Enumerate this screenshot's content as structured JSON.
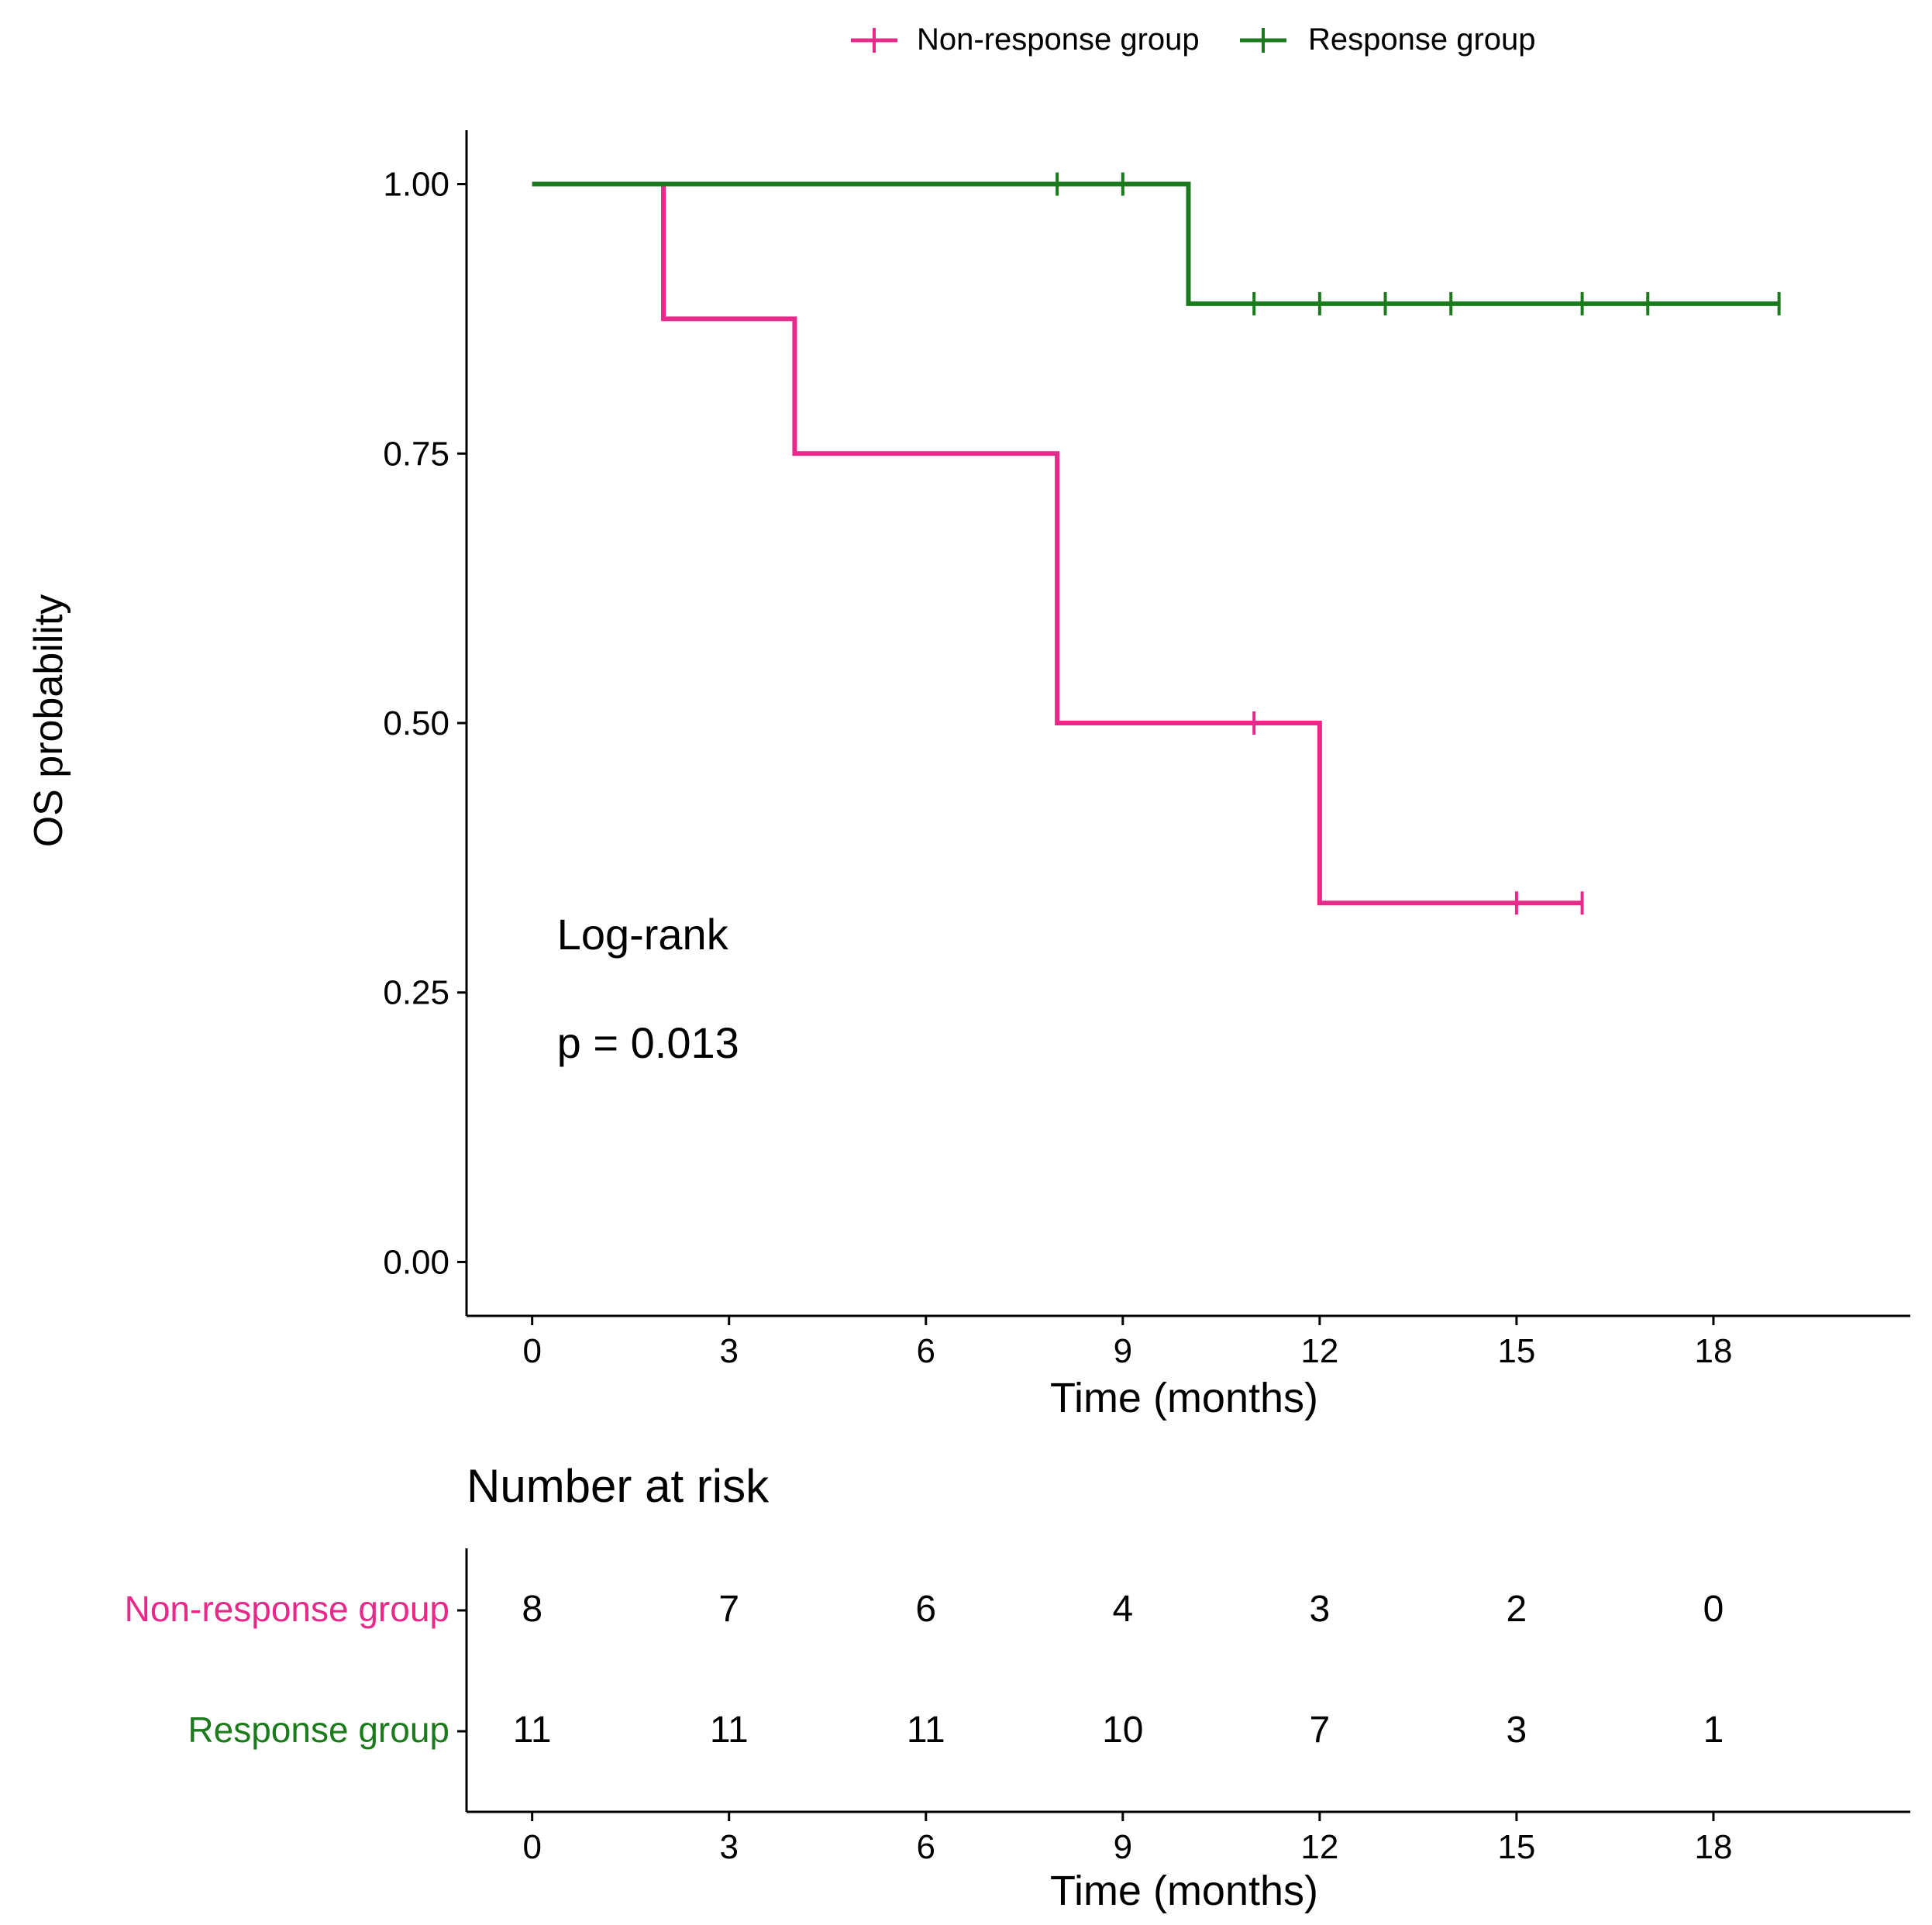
{
  "chart_data": [
    {
      "type": "line",
      "subtype": "kaplan-meier",
      "title": "",
      "xlabel": "Time (months)",
      "ylabel": "OS probability",
      "xlim": [
        -1,
        21
      ],
      "ylim": [
        -0.05,
        1.05
      ],
      "x_ticks": [
        0,
        3,
        6,
        9,
        12,
        15,
        18
      ],
      "x_tick_labels": [
        "0",
        "3",
        "6",
        "9",
        "12",
        "15",
        "18"
      ],
      "y_ticks": [
        0,
        0.25,
        0.5,
        0.75,
        1
      ],
      "y_tick_labels": [
        "0.00",
        "0.25",
        "0.50",
        "0.75",
        "1.00"
      ],
      "grid": false,
      "legend_position": "top",
      "annotation": {
        "line1": "Log-rank",
        "line2": "p = 0.013",
        "x": 0.35,
        "y": 0.29
      },
      "series": [
        {
          "name": "Non-response group",
          "color": "#e7298a",
          "steps": [
            [
              0,
              1
            ],
            [
              2,
              0.875
            ],
            [
              4,
              0.75
            ],
            [
              8,
              0.5
            ],
            [
              12,
              0.333
            ],
            [
              16,
              0.333
            ]
          ],
          "censor_times": [
            11,
            15,
            16
          ]
        },
        {
          "name": "Response group",
          "color": "#1b7a1b",
          "steps": [
            [
              0,
              1
            ],
            [
              10,
              0.889
            ],
            [
              19,
              0.889
            ]
          ],
          "censor_times": [
            8,
            9,
            11,
            12,
            13,
            14,
            16,
            17,
            19
          ]
        }
      ]
    },
    {
      "type": "table",
      "title": "Number at risk",
      "xlabel": "Time (months)",
      "times": [
        0,
        3,
        6,
        9,
        12,
        15,
        18
      ],
      "x_tick_labels": [
        "0",
        "3",
        "6",
        "9",
        "12",
        "15",
        "18"
      ],
      "rows": [
        {
          "name": "Non-response group",
          "color": "#e7298a",
          "values": [
            "8",
            "7",
            "6",
            "4",
            "3",
            "2",
            "0"
          ]
        },
        {
          "name": "Response group",
          "color": "#1b7a1b",
          "values": [
            "11",
            "11",
            "11",
            "10",
            "7",
            "3",
            "1"
          ]
        }
      ]
    }
  ]
}
